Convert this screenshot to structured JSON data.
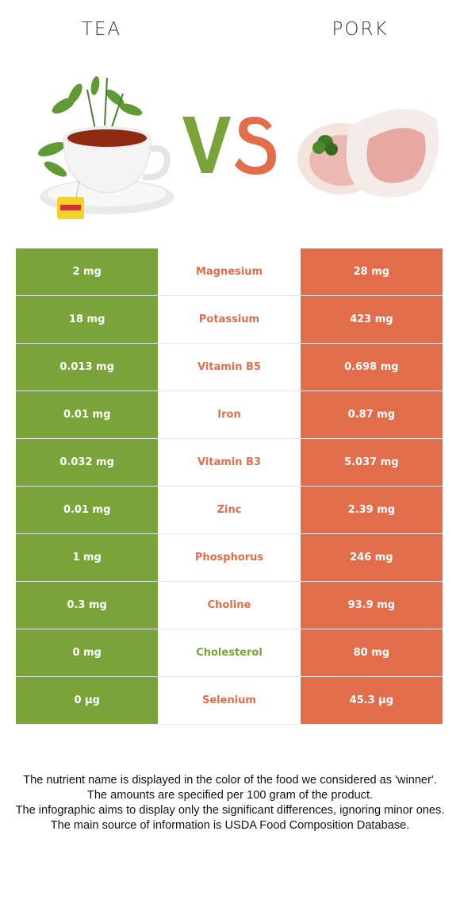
{
  "header": {
    "left_title": "TEA",
    "right_title": "PORK"
  },
  "colors": {
    "tea": "#7aa33a",
    "pork": "#e26d4b"
  },
  "images": {
    "left": "tea-cup-icon",
    "right": "pork-chop-icon",
    "vs": "vs-logo"
  },
  "vs_text": "VS",
  "rows": [
    {
      "nutrient": "Magnesium",
      "left": "2 mg",
      "right": "28 mg",
      "winner": "right"
    },
    {
      "nutrient": "Potassium",
      "left": "18 mg",
      "right": "423 mg",
      "winner": "right"
    },
    {
      "nutrient": "Vitamin B5",
      "left": "0.013 mg",
      "right": "0.698 mg",
      "winner": "right"
    },
    {
      "nutrient": "Iron",
      "left": "0.01 mg",
      "right": "0.87 mg",
      "winner": "right"
    },
    {
      "nutrient": "Vitamin B3",
      "left": "0.032 mg",
      "right": "5.037 mg",
      "winner": "right"
    },
    {
      "nutrient": "Zinc",
      "left": "0.01 mg",
      "right": "2.39 mg",
      "winner": "right"
    },
    {
      "nutrient": "Phosphorus",
      "left": "1 mg",
      "right": "246 mg",
      "winner": "right"
    },
    {
      "nutrient": "Choline",
      "left": "0.3 mg",
      "right": "93.9 mg",
      "winner": "right"
    },
    {
      "nutrient": "Cholesterol",
      "left": "0 mg",
      "right": "80 mg",
      "winner": "left"
    },
    {
      "nutrient": "Selenium",
      "left": "0 µg",
      "right": "45.3 µg",
      "winner": "right"
    }
  ],
  "footnote": [
    "The nutrient name is displayed in the color of the food we considered as 'winner'.",
    "The amounts are specified per 100 gram of the product.",
    "The infographic aims to display only the significant differences, ignoring minor ones.",
    "The main source of information is USDA Food Composition Database."
  ]
}
